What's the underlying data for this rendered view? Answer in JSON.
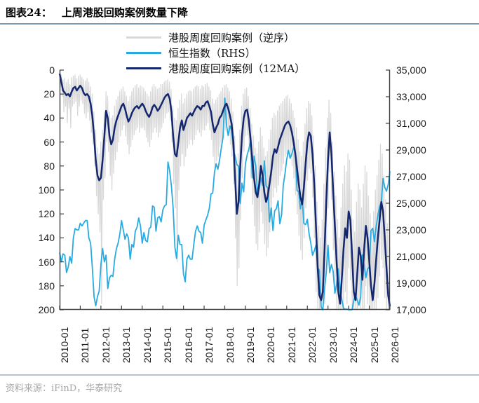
{
  "header": {
    "prefix": "图表24：",
    "title": "上周港股回购案例数量下降"
  },
  "footer": {
    "source": "资料来源：iFinD，华泰研究"
  },
  "colors": {
    "weekly": "#d9d9d9",
    "hsi": "#29abe2",
    "ma12": "#14266e",
    "axis": "#404040",
    "divider_top": "#7e9ab0",
    "divider_bottom": "#b4c3d2"
  },
  "chart_data": {
    "type": "line",
    "title": "上周港股回购案例数量下降",
    "grid": false,
    "legend_position": "top-center",
    "x_tick_labels": [
      "2010-01",
      "2011-01",
      "2012-01",
      "2013-01",
      "2014-01",
      "2015-01",
      "2016-01",
      "2017-01",
      "2018-01",
      "2019-01",
      "2020-01",
      "2021-01",
      "2022-01",
      "2023-01",
      "2024-01",
      "2025-01",
      "2026-01"
    ],
    "left_axis": {
      "inverted": true,
      "range": [
        0,
        200
      ],
      "ticks": [
        0,
        20,
        40,
        60,
        80,
        100,
        120,
        140,
        160,
        180,
        200
      ]
    },
    "right_axis": {
      "range": [
        17000,
        35000
      ],
      "ticks": [
        35000,
        33000,
        31000,
        29000,
        27000,
        25000,
        23000,
        21000,
        19000,
        17000
      ],
      "tick_labels": [
        "35,000",
        "33,000",
        "31,000",
        "29,000",
        "27,000",
        "25,000",
        "23,000",
        "21,000",
        "19,000",
        "17,000"
      ]
    },
    "series": [
      {
        "name": "港股周度回购案例（逆序）",
        "axis": "left",
        "color_key": "weekly",
        "width": 1.3,
        "values": [
          2,
          14,
          4,
          22,
          8,
          35,
          7,
          30,
          10,
          44,
          8,
          32,
          12,
          48,
          6,
          30,
          5,
          28,
          4,
          26,
          7,
          38,
          5,
          30,
          4,
          25,
          6,
          28,
          8,
          36,
          9,
          40,
          7,
          35,
          10,
          42,
          14,
          52,
          20,
          62,
          35,
          80,
          50,
          105,
          65,
          120,
          70,
          135,
          60,
          195,
          50,
          108,
          35,
          90,
          18,
          60,
          22,
          68,
          35,
          88,
          40,
          100,
          38,
          86,
          30,
          75,
          25,
          68,
          22,
          60,
          18,
          55,
          16,
          50,
          14,
          46,
          18,
          55,
          22,
          62,
          26,
          70,
          22,
          64,
          18,
          58,
          15,
          54,
          13,
          50,
          12,
          48,
          15,
          52,
          13,
          48,
          14,
          48,
          15,
          50,
          18,
          56,
          20,
          60,
          22,
          64,
          18,
          58,
          14,
          52,
          12,
          48,
          14,
          52,
          16,
          56,
          15,
          52,
          12,
          48,
          12,
          44,
          10,
          40,
          9,
          36,
          8,
          35,
          10,
          42,
          16,
          60,
          30,
          95,
          40,
          115,
          42,
          160,
          32,
          100,
          25,
          80,
          20,
          70,
          28,
          80,
          24,
          72,
          20,
          65,
          18,
          62,
          17,
          58,
          18,
          62,
          16,
          58,
          14,
          54,
          13,
          50,
          14,
          52,
          16,
          55,
          13,
          50,
          14,
          50,
          12,
          46,
          11,
          44,
          14,
          50,
          17,
          58,
          24,
          72,
          28,
          82,
          25,
          76,
          23,
          72,
          20,
          64,
          18,
          62,
          15,
          56,
          13,
          50,
          12,
          48,
          15,
          54,
          18,
          62,
          24,
          72,
          35,
          95,
          55,
          140,
          80,
          180,
          70,
          165,
          50,
          125,
          30,
          90,
          20,
          68,
          16,
          55,
          15,
          54,
          22,
          68,
          32,
          90,
          45,
          112,
          55,
          130,
          65,
          145,
          70,
          150,
          60,
          135,
          48,
          118,
          55,
          128,
          65,
          145,
          72,
          155,
          68,
          148,
          58,
          135,
          50,
          122,
          40,
          106,
          36,
          98,
          38,
          102,
          34,
          96,
          30,
          88,
          28,
          84,
          26,
          78,
          24,
          72,
          22,
          70,
          21,
          68,
          24,
          72,
          28,
          80,
          34,
          90,
          40,
          104,
          48,
          120,
          58,
          138,
          68,
          150,
          72,
          158,
          60,
          140,
          45,
          115,
          32,
          92,
          26,
          82,
          28,
          86,
          38,
          106,
          55,
          140,
          80,
          185,
          110,
          200,
          130,
          200,
          140,
          200,
          125,
          200,
          95,
          195,
          65,
          160,
          40,
          115,
          25,
          85,
          36,
          108,
          60,
          150,
          85,
          185,
          105,
          200,
          125,
          200,
          140,
          200,
          115,
          200,
          95,
          195,
          80,
          185,
          85,
          195,
          70,
          165,
          75,
          175,
          100,
          200,
          125,
          200,
          135,
          200,
          110,
          200,
          95,
          195,
          100,
          200,
          115,
          200,
          95,
          200,
          80,
          180,
          85,
          195,
          105,
          200,
          120,
          200,
          135,
          200,
          118,
          200,
          100,
          200,
          88,
          190,
          75,
          172,
          62,
          158,
          70,
          165,
          88,
          190,
          108,
          200,
          128,
          200,
          200,
          148
        ]
      },
      {
        "name": "恒生指数（RHS）",
        "axis": "right",
        "color_key": "hsi",
        "width": 1.8,
        "values": [
          21300,
          20600,
          21200,
          21100,
          19800,
          20200,
          21000,
          20500,
          22400,
          23100,
          23000,
          23000,
          23500,
          23300,
          23500,
          23700,
          23700,
          22400,
          22000,
          20200,
          18000,
          17300,
          18000,
          18400,
          20400,
          21600,
          20600,
          21100,
          18600,
          19400,
          19600,
          19500,
          20800,
          21600,
          22000,
          22700,
          23700,
          23000,
          22300,
          22700,
          22400,
          20800,
          21900,
          21700,
          22900,
          23200,
          23900,
          23300,
          22000,
          22800,
          22200,
          22100,
          23100,
          23200,
          24800,
          24700,
          22900,
          23900,
          24000,
          23600,
          24500,
          24800,
          24900,
          28100,
          27400,
          26250,
          24600,
          21700,
          20850,
          22600,
          21900,
          21900,
          19700,
          19100,
          20800,
          21100,
          20800,
          20800,
          21900,
          22900,
          23300,
          22900,
          22800,
          22000,
          23360,
          23740,
          24100,
          24600,
          25700,
          25760,
          27320,
          27970,
          27550,
          28250,
          29180,
          29920,
          32890,
          30840,
          30090,
          30810,
          30470,
          28960,
          28580,
          27890,
          27790,
          24980,
          26510,
          25850,
          27940,
          28630,
          29050,
          29700,
          26900,
          28540,
          27780,
          25720,
          26090,
          26910,
          26350,
          28190,
          26310,
          26130,
          23600,
          24640,
          22960,
          24430,
          24600,
          25180,
          23460,
          24110,
          26340,
          27230,
          28280,
          28980,
          28380,
          28720,
          29150,
          28830,
          25960,
          25880,
          24580,
          25380,
          23480,
          23400,
          23800,
          22710,
          22000,
          21090,
          21420,
          21860,
          20160,
          19950,
          17220,
          17000,
          18600,
          19780,
          21840,
          19790,
          20400,
          19890,
          18230,
          18920,
          20080,
          18380,
          17810,
          17100,
          17040,
          17050,
          17000,
          17000,
          17000,
          17760,
          18080,
          17720,
          17340,
          17990,
          21130,
          20320,
          19400,
          20060,
          20220,
          22940,
          23120,
          22120,
          23290,
          24070,
          24770,
          25080,
          26860,
          26200,
          25900,
          26400,
          27400
        ]
      },
      {
        "name": "港股周度回购案例（12MA）",
        "axis": "left",
        "color_key": "ma12",
        "width": 2.5,
        "values": [
          3,
          10,
          17,
          19,
          21,
          20,
          22,
          18,
          15,
          14,
          17,
          15,
          13,
          15,
          19,
          21,
          20,
          22,
          28,
          38,
          55,
          75,
          88,
          92,
          90,
          75,
          55,
          34,
          40,
          55,
          62,
          58,
          48,
          42,
          38,
          34,
          30,
          28,
          32,
          38,
          43,
          40,
          36,
          33,
          31,
          30,
          32,
          30,
          28,
          30,
          34,
          37,
          39,
          36,
          31,
          29,
          31,
          34,
          32,
          29,
          26,
          23,
          21,
          20,
          24,
          35,
          55,
          70,
          72,
          60,
          48,
          42,
          50,
          45,
          40,
          38,
          36,
          38,
          35,
          32,
          30,
          31,
          33,
          30,
          30,
          27,
          26,
          30,
          35,
          45,
          52,
          48,
          45,
          40,
          38,
          34,
          30,
          28,
          32,
          38,
          45,
          60,
          90,
          120,
          110,
          80,
          55,
          40,
          34,
          33,
          42,
          58,
          75,
          90,
          102,
          106,
          95,
          80,
          88,
          102,
          110,
          105,
          95,
          85,
          72,
          66,
          69,
          64,
          58,
          54,
          50,
          46,
          44,
          43,
          46,
          52,
          60,
          70,
          82,
          95,
          106,
          112,
          98,
          78,
          60,
          52,
          55,
          70,
          95,
          130,
          165,
          188,
          192,
          185,
          150,
          110,
          75,
          52,
          70,
          100,
          130,
          160,
          185,
          195,
          175,
          150,
          132,
          140,
          118,
          125,
          155,
          185,
          192,
          170,
          148,
          155,
          175,
          150,
          130,
          140,
          160,
          180,
          192,
          178,
          158,
          140,
          125,
          110,
          118,
          140,
          165,
          188,
          197
        ]
      }
    ]
  }
}
